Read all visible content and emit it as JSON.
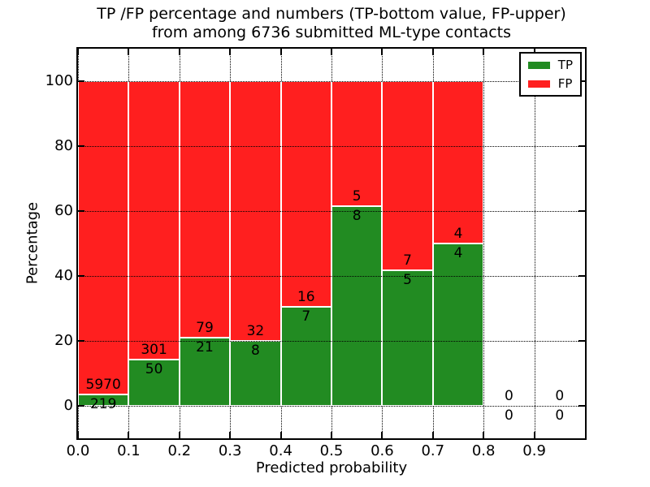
{
  "title": {
    "line1": "TP /FP percentage and numbers (TP-bottom value, FP-upper)",
    "line2": "from among 6736 submitted ML-type contacts"
  },
  "axes": {
    "xlabel": "Predicted probability",
    "ylabel": "Percentage"
  },
  "legend": [
    {
      "label": "TP",
      "color": "#228B22"
    },
    {
      "label": "FP",
      "color": "#FF1F1F"
    }
  ],
  "chart_data": {
    "type": "bar",
    "stacked": true,
    "normalized": "each bin stacked to 100%",
    "title": "TP /FP percentage and numbers (TP-bottom value, FP-upper) from among 6736 submitted ML-type contacts",
    "xlabel": "Predicted probability",
    "ylabel": "Percentage",
    "xlim": [
      0.0,
      1.0
    ],
    "ylim": [
      -10,
      110
    ],
    "grid": "dotted",
    "legend_position": "upper right",
    "bin_width": 0.1,
    "categories": [
      "0.0-0.1",
      "0.1-0.2",
      "0.2-0.3",
      "0.3-0.4",
      "0.4-0.5",
      "0.5-0.6",
      "0.6-0.7",
      "0.7-0.8",
      "0.8-0.9",
      "0.9-1.0"
    ],
    "xticks": [
      "0.0",
      "0.1",
      "0.2",
      "0.3",
      "0.4",
      "0.5",
      "0.6",
      "0.7",
      "0.8",
      "0.9"
    ],
    "yticks": [
      "0",
      "20",
      "40",
      "60",
      "80",
      "100"
    ],
    "series": [
      {
        "name": "TP",
        "color": "#228B22",
        "counts": [
          219,
          50,
          21,
          8,
          7,
          8,
          5,
          4,
          0,
          0
        ]
      },
      {
        "name": "FP",
        "color": "#FF1F1F",
        "counts": [
          5970,
          301,
          79,
          32,
          16,
          5,
          7,
          4,
          0,
          0
        ]
      }
    ]
  }
}
